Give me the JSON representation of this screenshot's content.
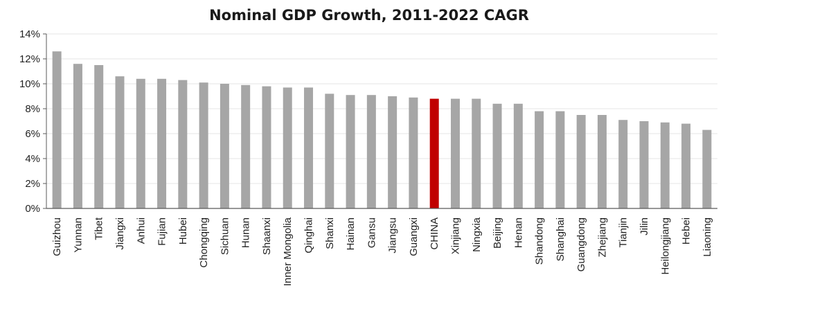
{
  "chart_data": {
    "type": "bar",
    "title": "Nominal GDP Growth, 2011-2022 CAGR",
    "xlabel": "",
    "ylabel": "",
    "ylim": [
      0,
      14
    ],
    "yticks": [
      "0%",
      "2%",
      "4%",
      "6%",
      "8%",
      "10%",
      "12%",
      "14%"
    ],
    "grid": true,
    "legend": "none",
    "categories": [
      "Guizhou",
      "Yunnan",
      "Tibet",
      "Jiangxi",
      "Anhui",
      "Fujian",
      "Hubei",
      "Chongqing",
      "Sichuan",
      "Hunan",
      "Shaanxi",
      "Inner Mongolia",
      "Qinghai",
      "Shanxi",
      "Hainan",
      "Gansu",
      "Jiangsu",
      "Guangxi",
      "CHINA",
      "Xinjiang",
      "Ningxia",
      "Beijing",
      "Henan",
      "Shandong",
      "Shanghai",
      "Guangdong",
      "Zhejiang",
      "Tianjin",
      "Jilin",
      "Heilongjiang",
      "Hebei",
      "Liaoning"
    ],
    "values": [
      12.6,
      11.6,
      11.5,
      10.6,
      10.4,
      10.4,
      10.3,
      10.1,
      10.0,
      9.9,
      9.8,
      9.7,
      9.7,
      9.2,
      9.1,
      9.1,
      9.0,
      8.9,
      8.8,
      8.8,
      8.8,
      8.4,
      8.4,
      7.8,
      7.8,
      7.5,
      7.5,
      7.1,
      7.0,
      6.9,
      6.8,
      6.3
    ],
    "colors": {
      "bar": "#a6a6a6",
      "highlight": "#c00000",
      "highlight_category": "CHINA",
      "grid": "#e6e6e6",
      "axis": "#595959"
    }
  }
}
